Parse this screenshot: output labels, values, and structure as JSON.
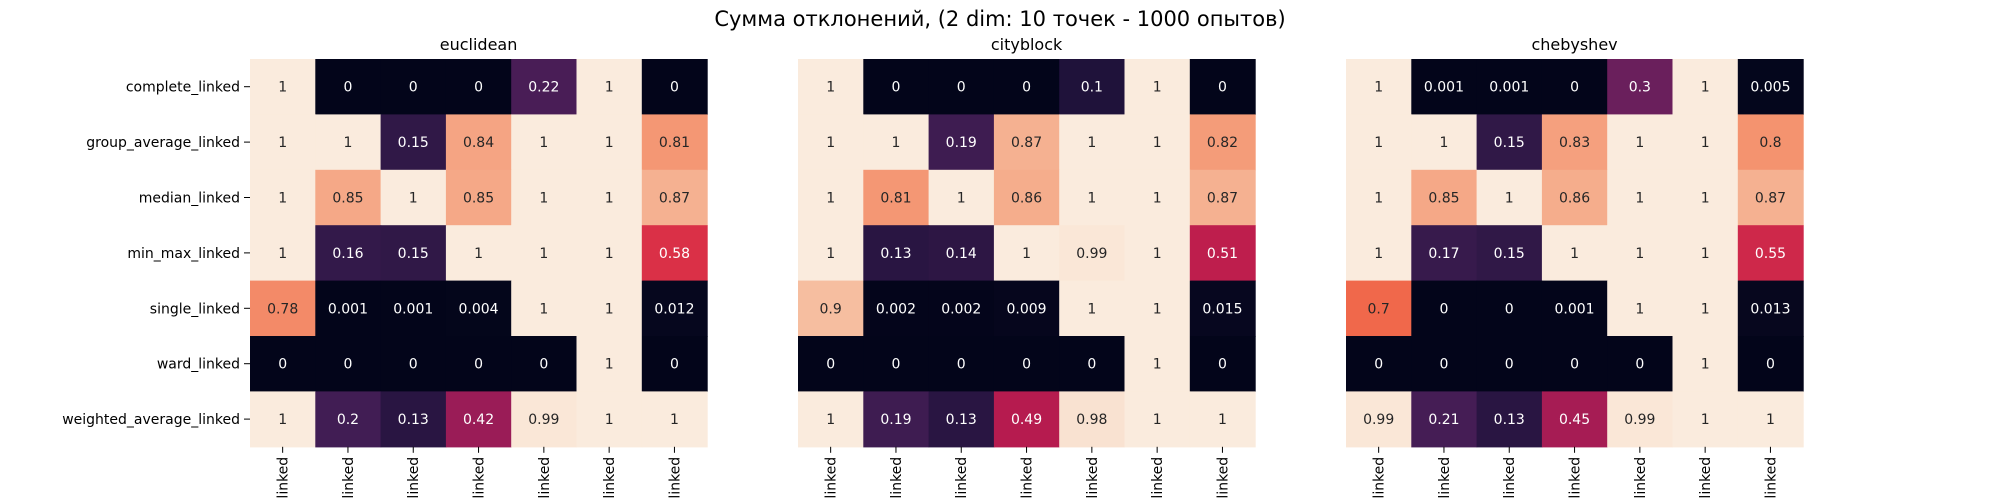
{
  "figure": {
    "title": "Сумма отклонений, (2 dim: 10 точек - 1000 опытов)"
  },
  "chart_data": [
    {
      "type": "heatmap",
      "title": "euclidean",
      "rows": [
        "complete_linked",
        "group_average_linked",
        "median_linked",
        "min_max_linked",
        "single_linked",
        "ward_linked",
        "weighted_average_linked"
      ],
      "cols": [
        "linked",
        "linked",
        "linked",
        "linked",
        "linked",
        "linked",
        "linked"
      ],
      "values": [
        [
          1,
          0,
          0,
          0,
          0.22,
          1,
          0
        ],
        [
          1,
          1,
          0.15,
          0.84,
          1,
          1,
          0.81
        ],
        [
          1,
          0.85,
          1,
          0.85,
          1,
          1,
          0.87
        ],
        [
          1,
          0.16,
          0.15,
          1,
          1,
          1,
          0.58
        ],
        [
          0.78,
          0.001,
          0.001,
          0.004,
          1,
          1,
          0.012
        ],
        [
          0,
          0,
          0,
          0,
          0,
          1,
          0
        ],
        [
          1,
          0.2,
          0.13,
          0.42,
          0.99,
          1,
          1
        ]
      ],
      "labels": [
        [
          "1",
          "0",
          "0",
          "0",
          "0.22",
          "1",
          "0"
        ],
        [
          "1",
          "1",
          "0.15",
          "0.84",
          "1",
          "1",
          "0.81"
        ],
        [
          "1",
          "0.85",
          "1",
          "0.85",
          "1",
          "1",
          "0.87"
        ],
        [
          "1",
          "0.16",
          "0.15",
          "1",
          "1",
          "1",
          "0.58"
        ],
        [
          "0.78",
          "0.001",
          "0.001",
          "0.004",
          "1",
          "1",
          "0.012"
        ],
        [
          "0",
          "0",
          "0",
          "0",
          "0",
          "1",
          "0"
        ],
        [
          "1",
          "0.2",
          "0.13",
          "0.42",
          "0.99",
          "1",
          "1"
        ]
      ],
      "colormap": "rocket",
      "vmin": 0,
      "vmax": 1
    },
    {
      "type": "heatmap",
      "title": "cityblock",
      "cols": [
        "linked",
        "linked",
        "linked",
        "linked",
        "linked",
        "linked",
        "linked"
      ],
      "values": [
        [
          1,
          0,
          0,
          0,
          0.1,
          1,
          0
        ],
        [
          1,
          1,
          0.19,
          0.87,
          1,
          1,
          0.82
        ],
        [
          1,
          0.81,
          1,
          0.86,
          1,
          1,
          0.87
        ],
        [
          1,
          0.13,
          0.14,
          1,
          0.99,
          1,
          0.51
        ],
        [
          0.9,
          0.002,
          0.002,
          0.009,
          1,
          1,
          0.015
        ],
        [
          0,
          0,
          0,
          0,
          0,
          1,
          0
        ],
        [
          1,
          0.19,
          0.13,
          0.49,
          0.98,
          1,
          1
        ]
      ],
      "labels": [
        [
          "1",
          "0",
          "0",
          "0",
          "0.1",
          "1",
          "0"
        ],
        [
          "1",
          "1",
          "0.19",
          "0.87",
          "1",
          "1",
          "0.82"
        ],
        [
          "1",
          "0.81",
          "1",
          "0.86",
          "1",
          "1",
          "0.87"
        ],
        [
          "1",
          "0.13",
          "0.14",
          "1",
          "0.99",
          "1",
          "0.51"
        ],
        [
          "0.9",
          "0.002",
          "0.002",
          "0.009",
          "1",
          "1",
          "0.015"
        ],
        [
          "0",
          "0",
          "0",
          "0",
          "0",
          "1",
          "0"
        ],
        [
          "1",
          "0.19",
          "0.13",
          "0.49",
          "0.98",
          "1",
          "1"
        ]
      ],
      "colormap": "rocket",
      "vmin": 0,
      "vmax": 1
    },
    {
      "type": "heatmap",
      "title": "chebyshev",
      "cols": [
        "linked",
        "linked",
        "linked",
        "linked",
        "linked",
        "linked",
        "linked"
      ],
      "values": [
        [
          1,
          0.001,
          0.001,
          0,
          0.3,
          1,
          0.005
        ],
        [
          1,
          1,
          0.15,
          0.83,
          1,
          1,
          0.8
        ],
        [
          1,
          0.85,
          1,
          0.86,
          1,
          1,
          0.87
        ],
        [
          1,
          0.17,
          0.15,
          1,
          1,
          1,
          0.55
        ],
        [
          0.7,
          0,
          0,
          0.001,
          1,
          1,
          0.013
        ],
        [
          0,
          0,
          0,
          0,
          0,
          1,
          0
        ],
        [
          0.99,
          0.21,
          0.13,
          0.45,
          0.99,
          1,
          1
        ]
      ],
      "labels": [
        [
          "1",
          "0.001",
          "0.001",
          "0",
          "0.3",
          "1",
          "0.005"
        ],
        [
          "1",
          "1",
          "0.15",
          "0.83",
          "1",
          "1",
          "0.8"
        ],
        [
          "1",
          "0.85",
          "1",
          "0.86",
          "1",
          "1",
          "0.87"
        ],
        [
          "1",
          "0.17",
          "0.15",
          "1",
          "1",
          "1",
          "0.55"
        ],
        [
          "0.7",
          "0",
          "0",
          "0.001",
          "1",
          "1",
          "0.013"
        ],
        [
          "0",
          "0",
          "0",
          "0",
          "0",
          "1",
          "0"
        ],
        [
          "0.99",
          "0.21",
          "0.13",
          "0.45",
          "0.99",
          "1",
          "1"
        ]
      ],
      "colormap": "rocket",
      "vmin": 0,
      "vmax": 1
    }
  ]
}
